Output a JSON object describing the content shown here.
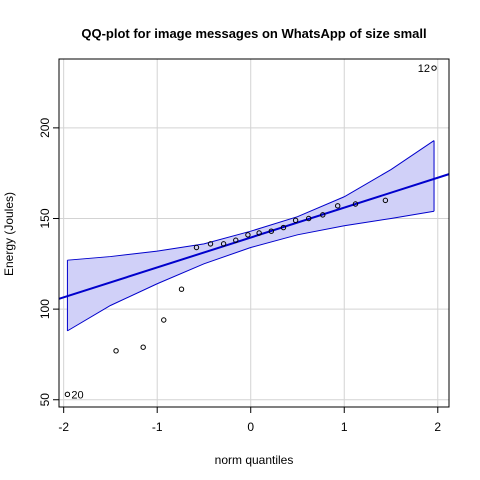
{
  "chart_data": {
    "type": "scatter",
    "title": "QQ-plot for image messages on WhatsApp of size small",
    "xlabel": "norm quantiles",
    "ylabel": "Energy (Joules)",
    "xlim": [
      -2.05,
      2.12
    ],
    "ylim": [
      46,
      238
    ],
    "xticks": [
      -2,
      -1,
      0,
      1,
      2
    ],
    "yticks": [
      50,
      100,
      150,
      200
    ],
    "grid": true,
    "colors": {
      "band": "#d0d0f8",
      "band_edge": "#0000cc",
      "line": "#0000cc",
      "points": "#000000",
      "grid": "#d3d3d3"
    },
    "reference_line": {
      "intercept": 139.5,
      "slope": 16.5
    },
    "envelope": {
      "x": [
        -1.96,
        -1.5,
        -1.0,
        -0.5,
        0.0,
        0.5,
        1.0,
        1.5,
        1.96
      ],
      "upper": [
        127,
        129,
        132,
        136,
        143,
        151,
        162,
        177,
        193
      ],
      "lower": [
        88,
        102,
        114,
        125,
        134,
        141,
        146,
        150,
        154
      ]
    },
    "points": [
      {
        "x": -1.96,
        "y": 53
      },
      {
        "x": -1.44,
        "y": 77
      },
      {
        "x": -1.15,
        "y": 79
      },
      {
        "x": -0.93,
        "y": 94
      },
      {
        "x": -0.74,
        "y": 111
      },
      {
        "x": -0.58,
        "y": 134
      },
      {
        "x": -0.43,
        "y": 136
      },
      {
        "x": -0.29,
        "y": 136
      },
      {
        "x": -0.16,
        "y": 138
      },
      {
        "x": -0.03,
        "y": 141
      },
      {
        "x": 0.09,
        "y": 142
      },
      {
        "x": 0.22,
        "y": 143
      },
      {
        "x": 0.35,
        "y": 145
      },
      {
        "x": 0.48,
        "y": 149
      },
      {
        "x": 0.62,
        "y": 150
      },
      {
        "x": 0.77,
        "y": 152
      },
      {
        "x": 0.93,
        "y": 157
      },
      {
        "x": 1.12,
        "y": 158
      },
      {
        "x": 1.44,
        "y": 160
      },
      {
        "x": 1.96,
        "y": 233
      }
    ],
    "point_labels": [
      {
        "text": "12",
        "x": 1.96,
        "y": 233,
        "side": "left"
      },
      {
        "text": "20",
        "x": -1.96,
        "y": 53,
        "side": "right"
      }
    ]
  }
}
